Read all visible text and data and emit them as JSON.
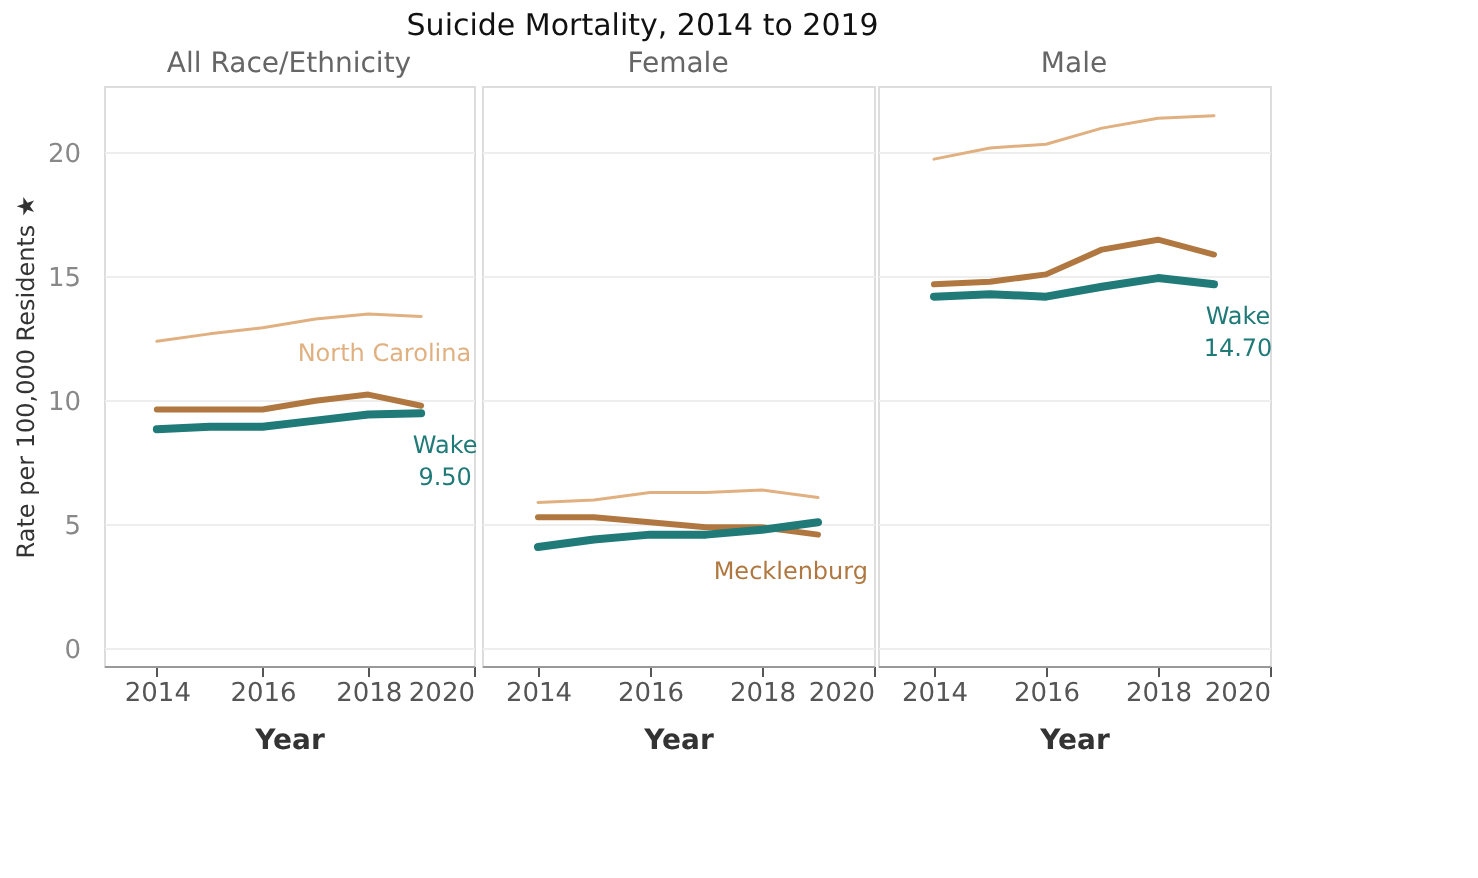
{
  "chart_data": [
    {
      "type": "line",
      "title": "All Race/Ethnicity",
      "xlabel": "Year",
      "ylabel": "Rate per 100,000 Residents ★",
      "annotations": [
        "Suicide Mortality, 2014 to 2019"
      ],
      "x": [
        2014,
        2015,
        2016,
        2017,
        2018,
        2019
      ],
      "xlim": [
        2013,
        2020
      ],
      "xticks": [
        2014,
        2016,
        2018,
        2020
      ],
      "ylim": [
        -0.7,
        22.7
      ],
      "yticks": [
        0,
        5,
        10,
        15,
        20
      ],
      "grid": "y",
      "marker": "none",
      "line_style": "solid",
      "series": [
        {
          "name": "North Carolina",
          "color": "#e0b080",
          "values": [
            12.4,
            12.7,
            12.95,
            13.3,
            13.5,
            13.4
          ]
        },
        {
          "color": "#b07840",
          "values": [
            9.65,
            9.65,
            9.65,
            10.0,
            10.25,
            9.8
          ]
        },
        {
          "name": "Wake",
          "color": "#1f7a78",
          "values": [
            8.85,
            8.95,
            8.95,
            9.2,
            9.45,
            9.5
          ],
          "value_labels": [
            null,
            null,
            null,
            null,
            null,
            "9.50"
          ]
        }
      ]
    },
    {
      "type": "line",
      "title": "Female",
      "xlabel": "Year",
      "x": [
        2014,
        2015,
        2016,
        2017,
        2018,
        2019
      ],
      "xlim": [
        2013,
        2020
      ],
      "xticks": [
        2014,
        2016,
        2018,
        2020
      ],
      "ylim": [
        -0.7,
        22.7
      ],
      "yticks": [
        0,
        5,
        10,
        15,
        20
      ],
      "tick_labels": "x",
      "grid": "y",
      "marker": "none",
      "line_style": "solid",
      "series": [
        {
          "color": "#e0b080",
          "values": [
            5.9,
            6.0,
            6.3,
            6.3,
            6.4,
            6.1
          ]
        },
        {
          "name": "Mecklenburg",
          "color": "#b07840",
          "values": [
            5.3,
            5.3,
            5.1,
            4.9,
            4.9,
            4.6
          ]
        },
        {
          "color": "#1f7a78",
          "values": [
            4.1,
            4.4,
            4.6,
            4.6,
            4.8,
            5.1
          ]
        }
      ]
    },
    {
      "type": "line",
      "title": "Male",
      "xlabel": "Year",
      "x": [
        2014,
        2015,
        2016,
        2017,
        2018,
        2019
      ],
      "xlim": [
        2013,
        2020
      ],
      "xticks": [
        2014,
        2016,
        2018,
        2020
      ],
      "ylim": [
        -0.7,
        22.7
      ],
      "yticks": [
        0,
        5,
        10,
        15,
        20
      ],
      "tick_labels": "x",
      "grid": "y",
      "marker": "none",
      "line_style": "solid",
      "series": [
        {
          "color": "#e0b080",
          "values": [
            19.75,
            20.2,
            20.35,
            21.0,
            21.4,
            21.5
          ]
        },
        {
          "color": "#b07840",
          "values": [
            14.7,
            14.8,
            15.1,
            16.1,
            16.5,
            15.9
          ]
        },
        {
          "name": "Wake",
          "color": "#1f7a78",
          "values": [
            14.2,
            14.3,
            14.2,
            14.6,
            14.95,
            14.7
          ],
          "value_labels": [
            null,
            null,
            null,
            null,
            null,
            "14.70"
          ]
        }
      ]
    }
  ]
}
